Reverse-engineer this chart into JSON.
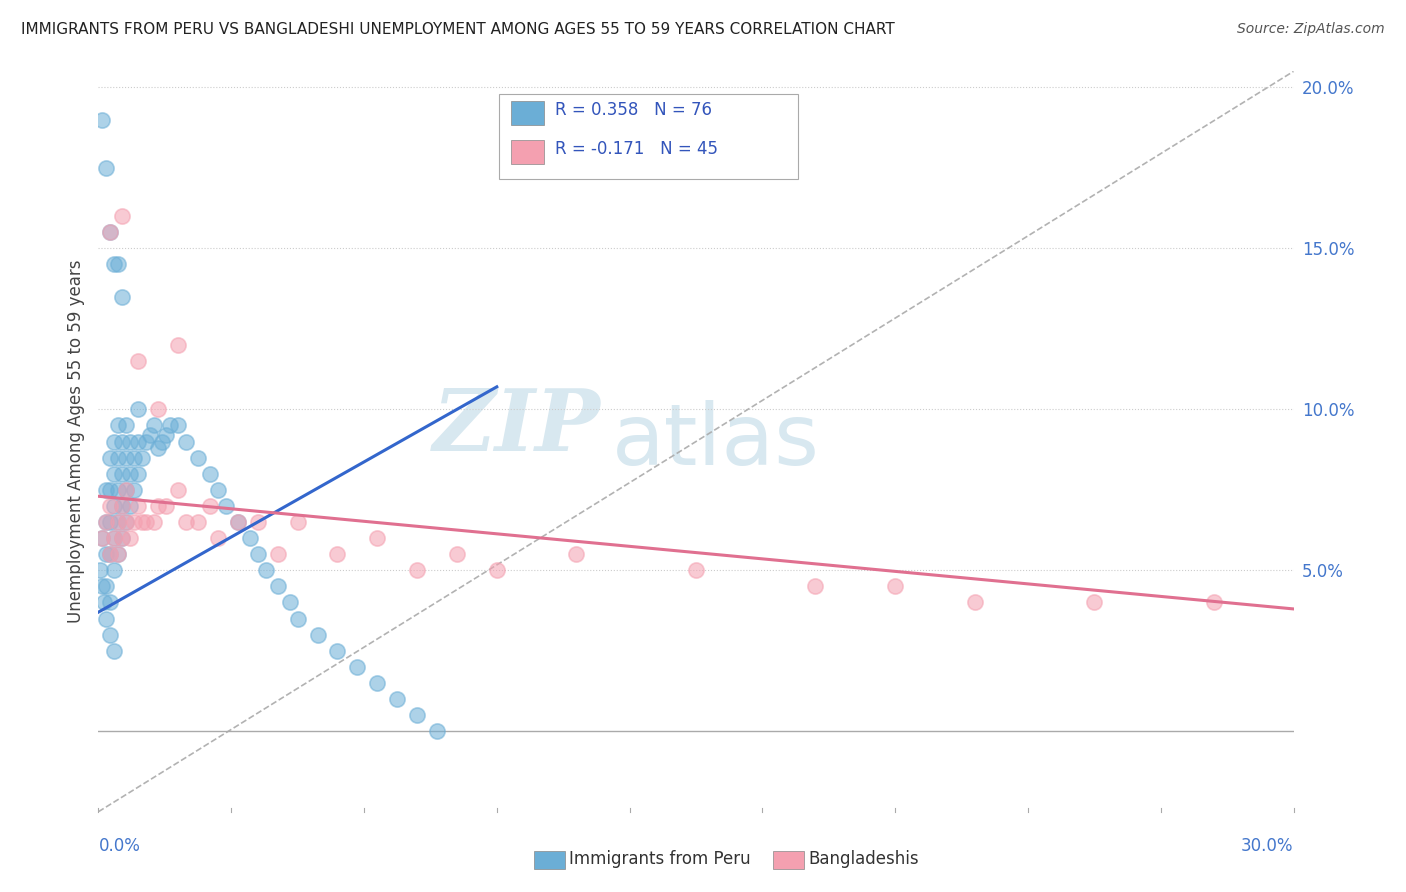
{
  "title": "IMMIGRANTS FROM PERU VS BANGLADESHI UNEMPLOYMENT AMONG AGES 55 TO 59 YEARS CORRELATION CHART",
  "source": "Source: ZipAtlas.com",
  "ylabel": "Unemployment Among Ages 55 to 59 years",
  "legend_entry1": "R = 0.358   N = 76",
  "legend_entry2": "R = -0.171   N = 45",
  "legend_label1": "Immigrants from Peru",
  "legend_label2": "Bangladeshis",
  "peru_color": "#6baed6",
  "bangladesh_color": "#f4a0b0",
  "trendline1_color": "#3366cc",
  "trendline2_color": "#e07090",
  "dashed_line_color": "#aaaaaa",
  "watermark_zip": "ZIP",
  "watermark_atlas": "atlas",
  "watermark_color": "#d8e8f0",
  "background_color": "#ffffff",
  "xlim": [
    0.0,
    0.3
  ],
  "ylim": [
    -0.025,
    0.205
  ],
  "ytick_vals": [
    0.05,
    0.1,
    0.15,
    0.2
  ],
  "peru_trend_x": [
    0.0,
    0.1
  ],
  "peru_trend_y": [
    0.037,
    0.107
  ],
  "bang_trend_x": [
    0.0,
    0.3
  ],
  "bang_trend_y": [
    0.073,
    0.038
  ],
  "peru_scatter_x": [
    0.0005,
    0.001,
    0.001,
    0.0015,
    0.002,
    0.002,
    0.002,
    0.002,
    0.002,
    0.003,
    0.003,
    0.003,
    0.003,
    0.003,
    0.003,
    0.004,
    0.004,
    0.004,
    0.004,
    0.004,
    0.004,
    0.005,
    0.005,
    0.005,
    0.005,
    0.005,
    0.006,
    0.006,
    0.006,
    0.006,
    0.007,
    0.007,
    0.007,
    0.007,
    0.008,
    0.008,
    0.008,
    0.009,
    0.009,
    0.01,
    0.01,
    0.01,
    0.011,
    0.012,
    0.013,
    0.014,
    0.015,
    0.016,
    0.017,
    0.018,
    0.02,
    0.022,
    0.025,
    0.028,
    0.03,
    0.032,
    0.035,
    0.038,
    0.04,
    0.042,
    0.045,
    0.048,
    0.05,
    0.055,
    0.06,
    0.065,
    0.07,
    0.075,
    0.08,
    0.085,
    0.001,
    0.002,
    0.003,
    0.004,
    0.005,
    0.006
  ],
  "peru_scatter_y": [
    0.05,
    0.045,
    0.06,
    0.04,
    0.055,
    0.065,
    0.075,
    0.035,
    0.045,
    0.055,
    0.065,
    0.075,
    0.085,
    0.03,
    0.04,
    0.05,
    0.06,
    0.07,
    0.08,
    0.09,
    0.025,
    0.055,
    0.065,
    0.075,
    0.085,
    0.095,
    0.06,
    0.07,
    0.08,
    0.09,
    0.065,
    0.075,
    0.085,
    0.095,
    0.07,
    0.08,
    0.09,
    0.075,
    0.085,
    0.08,
    0.09,
    0.1,
    0.085,
    0.09,
    0.092,
    0.095,
    0.088,
    0.09,
    0.092,
    0.095,
    0.095,
    0.09,
    0.085,
    0.08,
    0.075,
    0.07,
    0.065,
    0.06,
    0.055,
    0.05,
    0.045,
    0.04,
    0.035,
    0.03,
    0.025,
    0.02,
    0.015,
    0.01,
    0.005,
    0.0,
    0.19,
    0.175,
    0.155,
    0.145,
    0.145,
    0.135
  ],
  "bang_scatter_x": [
    0.001,
    0.002,
    0.003,
    0.003,
    0.004,
    0.005,
    0.005,
    0.006,
    0.006,
    0.007,
    0.007,
    0.008,
    0.009,
    0.01,
    0.011,
    0.012,
    0.014,
    0.015,
    0.017,
    0.02,
    0.022,
    0.025,
    0.028,
    0.03,
    0.035,
    0.04,
    0.045,
    0.05,
    0.06,
    0.07,
    0.08,
    0.09,
    0.1,
    0.12,
    0.15,
    0.18,
    0.2,
    0.22,
    0.25,
    0.28,
    0.003,
    0.006,
    0.01,
    0.015,
    0.02
  ],
  "bang_scatter_y": [
    0.06,
    0.065,
    0.055,
    0.07,
    0.06,
    0.055,
    0.065,
    0.06,
    0.07,
    0.065,
    0.075,
    0.06,
    0.065,
    0.07,
    0.065,
    0.065,
    0.065,
    0.07,
    0.07,
    0.075,
    0.065,
    0.065,
    0.07,
    0.06,
    0.065,
    0.065,
    0.055,
    0.065,
    0.055,
    0.06,
    0.05,
    0.055,
    0.05,
    0.055,
    0.05,
    0.045,
    0.045,
    0.04,
    0.04,
    0.04,
    0.155,
    0.16,
    0.115,
    0.1,
    0.12
  ]
}
